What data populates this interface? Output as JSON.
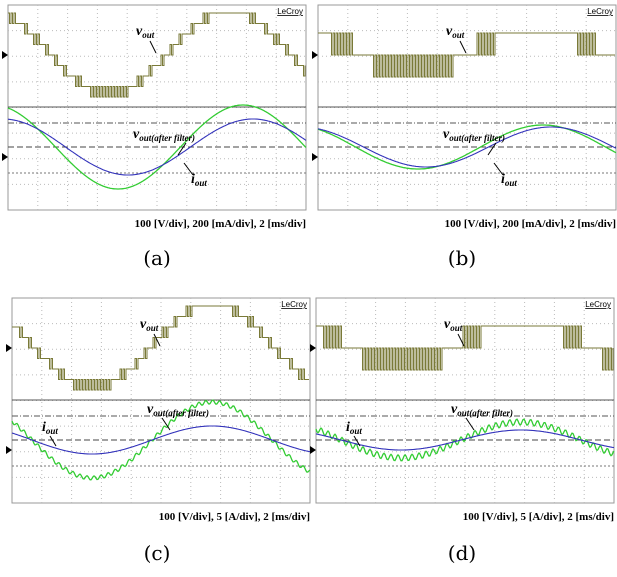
{
  "panels": [
    {
      "caption": "(a)",
      "brand": "LeCroy",
      "scale": "100 [V/div], 200 [mA/div], 2 [ms/div]",
      "vout": {
        "main": "v",
        "sub": "out"
      },
      "vfilt": {
        "main": "v",
        "sub": "out(after filter)"
      },
      "iout": {
        "main": "i",
        "sub": "out"
      }
    },
    {
      "caption": "(b)",
      "brand": "LeCroy",
      "scale": "100 [V/div], 200 [mA/div], 2 [ms/div]",
      "vout": {
        "main": "v",
        "sub": "out"
      },
      "vfilt": {
        "main": "v",
        "sub": "out(after filter)"
      },
      "iout": {
        "main": "i",
        "sub": "out"
      }
    },
    {
      "caption": "(c)",
      "brand": "LeCroy",
      "scale": "100 [V/div], 5 [A/div], 2 [ms/div]",
      "vout": {
        "main": "v",
        "sub": "out"
      },
      "vfilt": {
        "main": "v",
        "sub": "out(after filter)"
      },
      "iout": {
        "main": "i",
        "sub": "out"
      }
    },
    {
      "caption": "(d)",
      "brand": "LeCroy",
      "scale": "100 [V/div], 5 [A/div], 2 [ms/div]",
      "vout": {
        "main": "v",
        "sub": "out"
      },
      "vfilt": {
        "main": "v",
        "sub": "out(after filter)"
      },
      "iout": {
        "main": "i",
        "sub": "out"
      }
    }
  ]
}
